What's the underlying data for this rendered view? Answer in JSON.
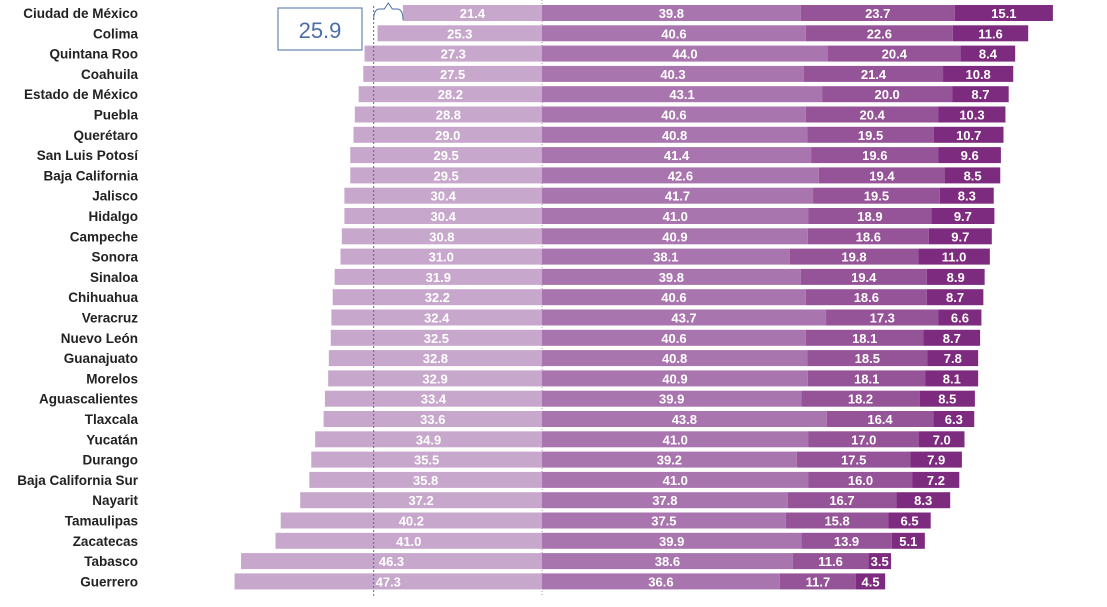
{
  "chart_data": {
    "type": "bar",
    "orientation": "horizontal",
    "stacked": true,
    "categories": [
      "Ciudad de México",
      "Colima",
      "Quintana Roo",
      "Coahuila",
      "Estado de México",
      "Puebla",
      "Querétaro",
      "San Luis Potosí",
      "Baja California",
      "Jalisco",
      "Hidalgo",
      "Campeche",
      "Sonora",
      "Sinaloa",
      "Chihuahua",
      "Veracruz",
      "Nuevo León",
      "Guanajuato",
      "Morelos",
      "Aguascalientes",
      "Tlaxcala",
      "Yucatán",
      "Durango",
      "Baja California Sur",
      "Nayarit",
      "Tamaulipas",
      "Zacatecas",
      "Tabasco",
      "Guerrero"
    ],
    "series": [
      {
        "values": [
          21.4,
          25.3,
          27.3,
          27.5,
          28.2,
          28.8,
          29.0,
          29.5,
          29.5,
          30.4,
          30.4,
          30.8,
          31.0,
          31.9,
          32.2,
          32.4,
          32.5,
          32.8,
          32.9,
          33.4,
          33.6,
          34.9,
          35.5,
          35.8,
          37.2,
          40.2,
          41.0,
          46.3,
          47.3
        ]
      },
      {
        "values": [
          39.8,
          40.6,
          44.0,
          40.3,
          43.1,
          40.6,
          40.8,
          41.4,
          42.6,
          41.7,
          41.0,
          40.9,
          38.1,
          39.8,
          40.6,
          43.7,
          40.6,
          40.8,
          40.9,
          39.9,
          43.8,
          41.0,
          39.2,
          41.0,
          37.8,
          37.5,
          39.9,
          38.6,
          36.6
        ]
      },
      {
        "values": [
          23.7,
          22.6,
          20.4,
          21.4,
          20.0,
          20.4,
          19.5,
          19.6,
          19.4,
          19.5,
          18.9,
          18.6,
          19.8,
          19.4,
          18.6,
          17.3,
          18.1,
          18.5,
          18.1,
          18.2,
          16.4,
          17.0,
          17.5,
          16.0,
          16.7,
          15.8,
          13.9,
          11.6,
          11.7
        ]
      },
      {
        "values": [
          15.1,
          11.6,
          8.4,
          10.8,
          8.7,
          10.3,
          10.7,
          9.6,
          8.5,
          8.3,
          9.7,
          9.7,
          11.0,
          8.9,
          8.7,
          6.6,
          8.7,
          7.8,
          8.1,
          8.5,
          6.3,
          7.0,
          7.9,
          7.2,
          8.3,
          6.5,
          5.1,
          3.5,
          4.5
        ]
      }
    ],
    "colors": [
      "#c8a7cc",
      "#a975ae",
      "#955398",
      "#7d2b7f"
    ],
    "callout": {
      "value": "25.9"
    },
    "legend": "none",
    "grid": false
  }
}
